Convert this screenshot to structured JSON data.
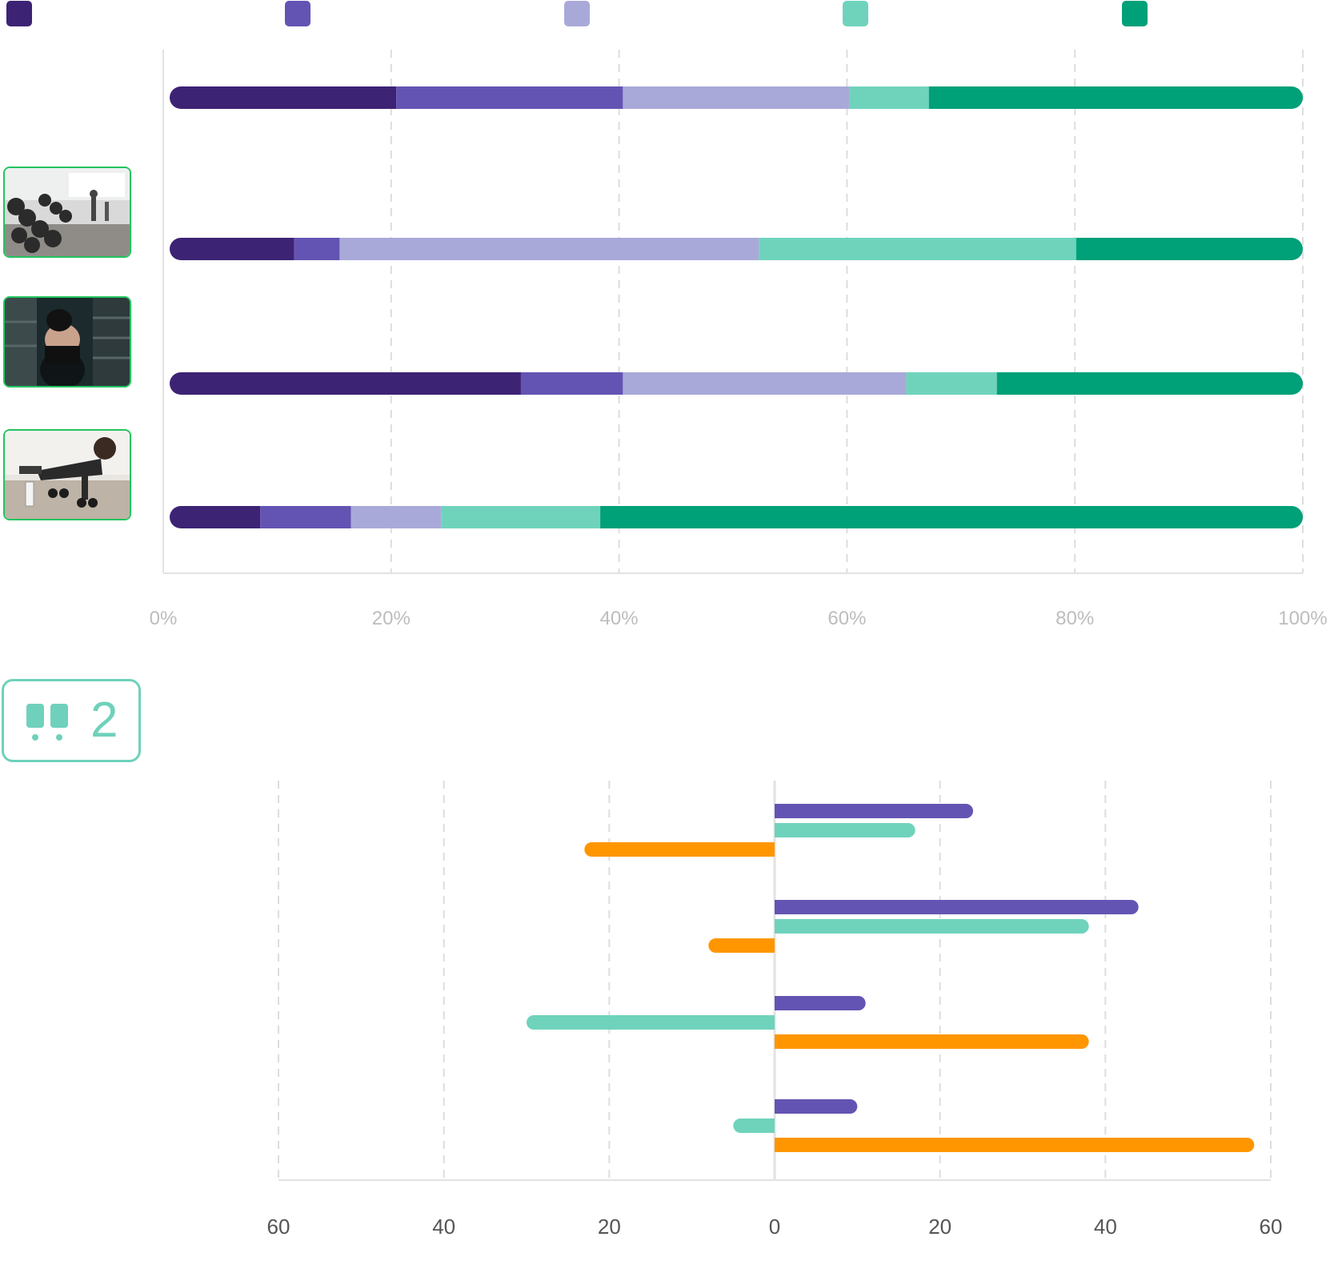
{
  "colors": {
    "deep_purple": "#3d2374",
    "purple": "#6354b3",
    "lavender": "#a9a9d9",
    "mint": "#6fd3bc",
    "green": "#00a078",
    "orange": "#ff9600",
    "badge": "#6fd1bb",
    "thumb_border": "#22c55e"
  },
  "legend": [
    {
      "label": "",
      "color": "#3d2374"
    },
    {
      "label": "",
      "color": "#6354b3"
    },
    {
      "label": "",
      "color": "#a9a9d9"
    },
    {
      "label": "",
      "color": "#6fd3bc"
    },
    {
      "label": "",
      "color": "#00a078"
    }
  ],
  "thumbnails": [
    {
      "icon": "gym-dumbbell-rack-photo"
    },
    {
      "icon": "woman-boxing-gym-photo"
    },
    {
      "icon": "man-pushup-dumbbells-photo"
    }
  ],
  "section2": {
    "badge_icon": "quote-marks-icon",
    "badge_number": "2",
    "title": ""
  },
  "chart_data": [
    {
      "type": "bar",
      "orientation": "horizontal",
      "stacked": "percent",
      "categories": [
        "",
        "",
        "",
        ""
      ],
      "series": [
        {
          "color": "#3d2374",
          "values": [
            20,
            11,
            31,
            8
          ]
        },
        {
          "color": "#6354b3",
          "values": [
            20,
            4,
            9,
            8
          ]
        },
        {
          "color": "#a9a9d9",
          "values": [
            20,
            37,
            25,
            8
          ]
        },
        {
          "color": "#6fd3bc",
          "values": [
            7,
            28,
            8,
            14
          ]
        },
        {
          "color": "#00a078",
          "values": [
            33,
            20,
            27,
            62
          ]
        }
      ],
      "xlim": [
        0,
        100
      ],
      "x_ticks": [
        "0%",
        "20%",
        "40%",
        "60%",
        "80%",
        "100%"
      ],
      "grid": true
    },
    {
      "type": "bar",
      "orientation": "horizontal",
      "grouped": true,
      "categories": [
        "",
        "",
        "",
        ""
      ],
      "series": [
        {
          "color": "#6354b3",
          "values": [
            24,
            44,
            11,
            10
          ]
        },
        {
          "color": "#6fd3bc",
          "values": [
            17,
            38,
            -30,
            -5
          ]
        },
        {
          "color": "#ff9600",
          "values": [
            -23,
            -8,
            38,
            58
          ]
        }
      ],
      "xlim": [
        -60,
        60
      ],
      "x_ticks": [
        "60",
        "40",
        "20",
        "0",
        "20",
        "40",
        "60"
      ],
      "grid": true
    }
  ]
}
